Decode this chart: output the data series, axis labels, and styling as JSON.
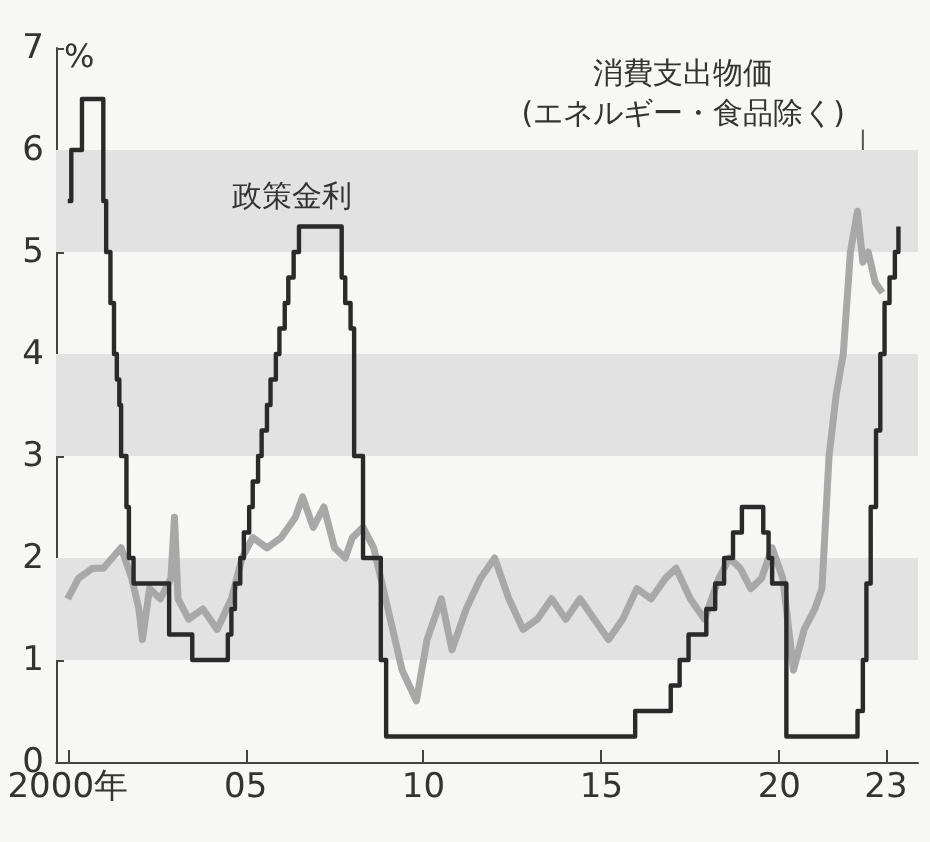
{
  "chart_data": {
    "type": "line",
    "ylabel": "%",
    "xlim": [
      1999.67,
      2023.9
    ],
    "ylim": [
      0,
      7
    ],
    "xticks": [
      {
        "value": 2000,
        "label": "2000年"
      },
      {
        "value": 2005,
        "label": "05"
      },
      {
        "value": 2010,
        "label": "10"
      },
      {
        "value": 2015,
        "label": "15"
      },
      {
        "value": 2020,
        "label": "20"
      },
      {
        "value": 2023,
        "label": "23"
      }
    ],
    "yticks": [
      0,
      1,
      2,
      3,
      4,
      5,
      6,
      7
    ],
    "grid": false,
    "marker": "none",
    "bands": [
      {
        "axis": "y",
        "from": 1,
        "to": 2,
        "color": "#e2e2e2"
      },
      {
        "axis": "y",
        "from": 3,
        "to": 4,
        "color": "#e2e2e2"
      },
      {
        "axis": "y",
        "from": 5,
        "to": 6,
        "color": "#e2e2e2"
      }
    ],
    "series": [
      {
        "name": "政策金利",
        "type": "step",
        "color": "#2a2a2a",
        "x": [
          2000.0,
          2000.1,
          2000.4,
          2001.0,
          2001.08,
          2001.2,
          2001.3,
          2001.38,
          2001.45,
          2001.5,
          2001.65,
          2001.72,
          2001.85,
          2001.95,
          2002.85,
          2003.5,
          2004.5,
          2004.6,
          2004.7,
          2004.85,
          2004.95,
          2005.1,
          2005.2,
          2005.35,
          2005.45,
          2005.6,
          2005.7,
          2005.85,
          2005.95,
          2006.1,
          2006.2,
          2006.35,
          2006.5,
          2007.7,
          2007.8,
          2007.95,
          2008.05,
          2008.3,
          2008.8,
          2008.95,
          2015.95,
          2016.95,
          2017.2,
          2017.45,
          2017.95,
          2018.2,
          2018.45,
          2018.7,
          2018.95,
          2019.55,
          2019.7,
          2019.8,
          2020.2,
          2022.2,
          2022.35,
          2022.45,
          2022.57,
          2022.72,
          2022.84,
          2022.96,
          2023.1,
          2023.25,
          2023.35
        ],
        "values": [
          5.5,
          6.0,
          6.5,
          5.5,
          5.0,
          4.5,
          4.0,
          3.75,
          3.5,
          3.0,
          2.5,
          2.0,
          1.75,
          1.75,
          1.25,
          1.0,
          1.25,
          1.5,
          1.75,
          2.0,
          2.25,
          2.5,
          2.75,
          3.0,
          3.25,
          3.5,
          3.75,
          4.0,
          4.25,
          4.5,
          4.75,
          5.0,
          5.25,
          4.75,
          4.5,
          4.25,
          3.0,
          2.0,
          1.0,
          0.25,
          0.5,
          0.75,
          1.0,
          1.25,
          1.5,
          1.75,
          2.0,
          2.25,
          2.5,
          2.25,
          2.0,
          1.75,
          0.25,
          0.5,
          1.0,
          1.75,
          2.5,
          3.25,
          4.0,
          4.5,
          4.75,
          5.0,
          5.25
        ]
      },
      {
        "name": "消費支出物価\n(エネルギー・食品除く)",
        "color": "#a8a8a8",
        "x": [
          2000.0,
          2000.3,
          2000.7,
          2001.0,
          2001.5,
          2001.8,
          2002.0,
          2002.1,
          2002.3,
          2002.6,
          2002.9,
          2003.0,
          2003.1,
          2003.4,
          2003.8,
          2004.2,
          2004.6,
          2004.9,
          2005.2,
          2005.6,
          2006.0,
          2006.4,
          2006.6,
          2006.9,
          2007.2,
          2007.5,
          2007.8,
          2008.0,
          2008.3,
          2008.6,
          2009.0,
          2009.4,
          2009.8,
          2010.1,
          2010.5,
          2010.8,
          2011.2,
          2011.6,
          2012.0,
          2012.4,
          2012.8,
          2013.2,
          2013.6,
          2014.0,
          2014.4,
          2014.8,
          2015.2,
          2015.6,
          2016.0,
          2016.4,
          2016.8,
          2017.1,
          2017.5,
          2017.9,
          2018.3,
          2018.6,
          2018.9,
          2019.2,
          2019.5,
          2019.8,
          2020.1,
          2020.4,
          2020.7,
          2021.0,
          2021.2,
          2021.4,
          2021.6,
          2021.8,
          2022.0,
          2022.2,
          2022.35,
          2022.5,
          2022.7,
          2022.9
        ],
        "values": [
          1.6,
          1.8,
          1.9,
          1.9,
          2.1,
          1.8,
          1.5,
          1.2,
          1.7,
          1.6,
          1.8,
          2.4,
          1.6,
          1.4,
          1.5,
          1.3,
          1.6,
          2.0,
          2.2,
          2.1,
          2.2,
          2.4,
          2.6,
          2.3,
          2.5,
          2.1,
          2.0,
          2.2,
          2.3,
          2.1,
          1.5,
          0.9,
          0.6,
          1.2,
          1.6,
          1.1,
          1.5,
          1.8,
          2.0,
          1.6,
          1.3,
          1.4,
          1.6,
          1.4,
          1.6,
          1.4,
          1.2,
          1.4,
          1.7,
          1.6,
          1.8,
          1.9,
          1.6,
          1.4,
          1.8,
          2.0,
          1.9,
          1.7,
          1.8,
          2.1,
          1.8,
          0.9,
          1.3,
          1.5,
          1.7,
          3.0,
          3.6,
          4.0,
          5.0,
          5.4,
          4.9,
          5.0,
          4.7,
          4.6
        ]
      }
    ]
  }
}
